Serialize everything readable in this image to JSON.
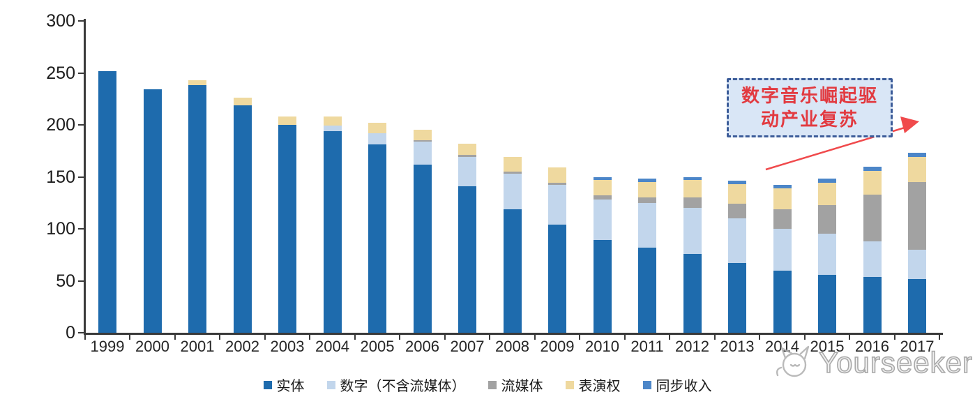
{
  "chart_data": {
    "type": "bar",
    "stacked": true,
    "title": "",
    "xlabel": "",
    "ylabel": "",
    "categories": [
      "1999",
      "2000",
      "2001",
      "2002",
      "2003",
      "2004",
      "2005",
      "2006",
      "2007",
      "2008",
      "2009",
      "2010",
      "2011",
      "2012",
      "2013",
      "2014",
      "2015",
      "2016",
      "2017"
    ],
    "series": [
      {
        "name": "实体",
        "color": "#1e6bad",
        "values": [
          252,
          234,
          238,
          219,
          200,
          194,
          181,
          162,
          141,
          119,
          104,
          89,
          82,
          76,
          67,
          60,
          56,
          54,
          52
        ]
      },
      {
        "name": "数字（不含流媒体）",
        "color": "#c2d6ec",
        "values": [
          0,
          0,
          0,
          0,
          0,
          5,
          11,
          22,
          28,
          34,
          38,
          39,
          43,
          44,
          43,
          40,
          39,
          34,
          28
        ]
      },
      {
        "name": "流媒体",
        "color": "#a2a2a2",
        "values": [
          0,
          0,
          0,
          0,
          0,
          0,
          0,
          1,
          2,
          2,
          2,
          4,
          5,
          10,
          14,
          19,
          28,
          45,
          65
        ]
      },
      {
        "name": "表演权",
        "color": "#efd99f",
        "values": [
          0,
          0,
          5,
          7,
          8,
          9,
          10,
          10,
          11,
          14,
          15,
          15,
          15,
          17,
          19,
          20,
          21,
          23,
          24
        ]
      },
      {
        "name": "同步收入",
        "color": "#4c86c8",
        "values": [
          0,
          0,
          0,
          0,
          0,
          0,
          0,
          0,
          0,
          0,
          0,
          3,
          3,
          3,
          3,
          3,
          4,
          4,
          4
        ]
      }
    ],
    "totals": [
      252,
      234,
      243,
      226,
      208,
      208,
      202,
      195,
      182,
      169,
      159,
      150,
      148,
      150,
      146,
      142,
      148,
      160,
      173
    ],
    "ylim": [
      0,
      300
    ],
    "yticks": [
      300,
      250,
      200,
      150,
      100,
      50,
      0
    ],
    "grid": false,
    "legend_position": "bottom"
  },
  "annotation": {
    "line1": "数字音乐崛起驱",
    "line2": "动产业复苏",
    "text_color": "#e23a40",
    "border_color": "#3c5c99",
    "fill_color": "#d9e6f6",
    "arrow_color": "#f04a4c"
  },
  "watermark": {
    "text": "Yourseeker",
    "color": "#a9a9a9"
  },
  "axis": {
    "line_color": "#3a3a3a",
    "label_color": "#1c1c1c"
  }
}
